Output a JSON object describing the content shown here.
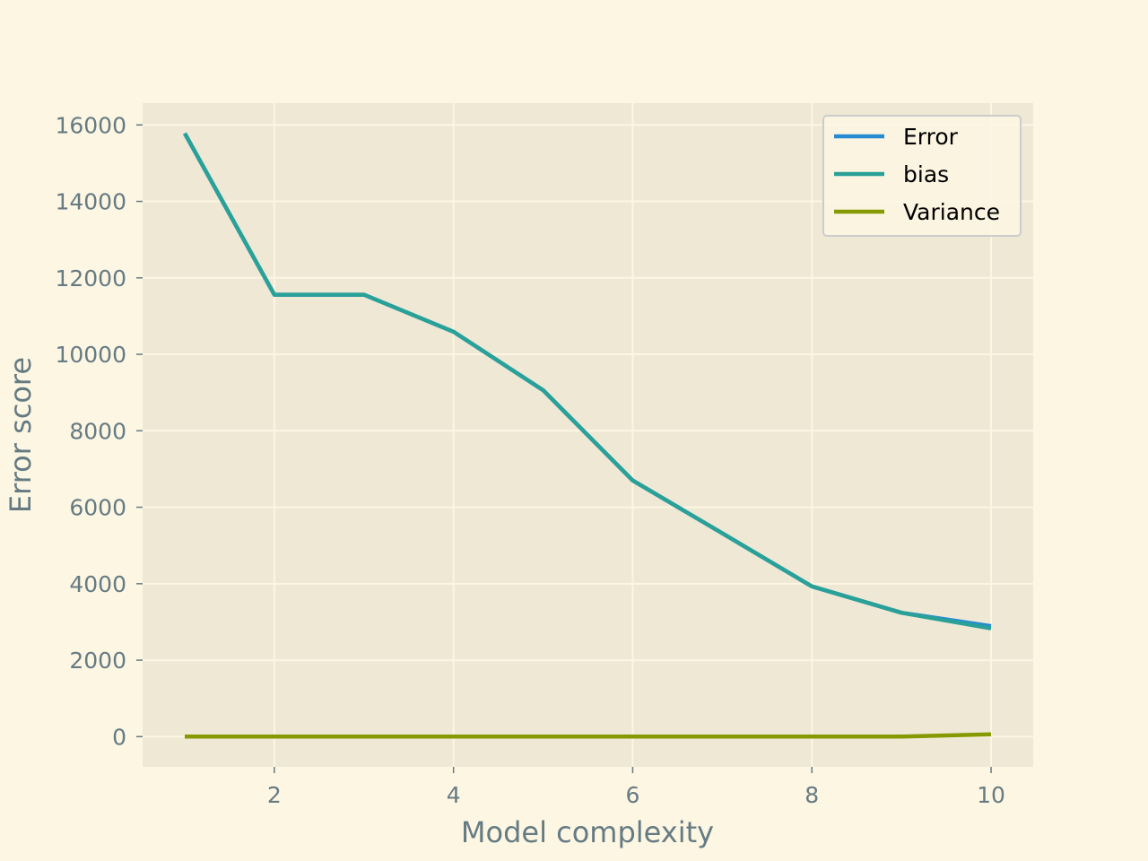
{
  "chart_data": {
    "type": "line",
    "title": "",
    "xlabel": "Model complexity",
    "ylabel": "Error score",
    "x": [
      1,
      2,
      3,
      4,
      5,
      6,
      7,
      8,
      9,
      10
    ],
    "series": [
      {
        "name": "Error",
        "color": "#268bd2",
        "values": [
          15780,
          11560,
          11560,
          10590,
          9060,
          6700,
          5320,
          3930,
          3240,
          2890
        ]
      },
      {
        "name": "bias",
        "color": "#2aa198",
        "values": [
          15780,
          11560,
          11560,
          10590,
          9060,
          6700,
          5320,
          3930,
          3240,
          2830
        ]
      },
      {
        "name": "Variance",
        "color": "#859900",
        "values": [
          0,
          0,
          0,
          0,
          0,
          0,
          0,
          0,
          0,
          60
        ]
      }
    ],
    "xlim": [
      0.53,
      10.47
    ],
    "ylim": [
      -790,
      16570
    ],
    "xticks": [
      2,
      4,
      6,
      8,
      10
    ],
    "yticks": [
      0,
      2000,
      4000,
      6000,
      8000,
      10000,
      12000,
      14000,
      16000
    ],
    "grid": true,
    "legend_position": "top-right",
    "colors": {
      "figure_background": "#fdf6e3",
      "plot_background": "#eee8d5",
      "grid": "#fdf6e3",
      "text": "#657b83"
    }
  }
}
